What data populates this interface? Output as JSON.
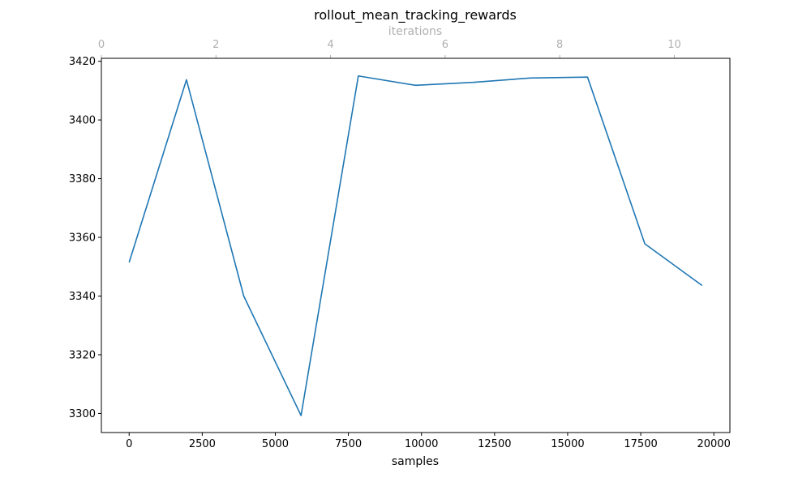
{
  "chart_data": {
    "type": "line",
    "title": "rollout_mean_tracking_rewards",
    "xlabel": "samples",
    "ylabel": "",
    "secondary_xlabel": "iterations",
    "xlim": [
      -950,
      20550
    ],
    "ylim": [
      3293.5,
      3421
    ],
    "secondary_xlim": [
      0,
      10.97
    ],
    "x_ticks": [
      0,
      2500,
      5000,
      7500,
      10000,
      12500,
      15000,
      17500,
      20000
    ],
    "x_tick_labels": [
      "0",
      "2500",
      "5000",
      "7500",
      "10000",
      "12500",
      "15000",
      "17500",
      "20000"
    ],
    "secondary_x_ticks": [
      0,
      2,
      4,
      6,
      8,
      10
    ],
    "secondary_x_tick_labels": [
      "0",
      "2",
      "4",
      "6",
      "8",
      "10"
    ],
    "y_ticks": [
      3300,
      3320,
      3340,
      3360,
      3380,
      3400,
      3420
    ],
    "y_tick_labels": [
      "3300",
      "3320",
      "3340",
      "3360",
      "3380",
      "3400",
      "3420"
    ],
    "grid": false,
    "series": [
      {
        "name": "rollout_mean_tracking_rewards",
        "x": [
          0,
          1960,
          3920,
          5880,
          7840,
          9800,
          11760,
          13720,
          15680,
          17640,
          19600
        ],
        "values": [
          3351.5,
          3413.7,
          3340.0,
          3299.3,
          3415.0,
          3411.8,
          3412.8,
          3414.3,
          3414.6,
          3357.8,
          3343.6
        ]
      }
    ],
    "colors": {
      "line": "#1f77b4",
      "axis": "#000000",
      "secondary_axis": "#b0b0b0"
    }
  }
}
